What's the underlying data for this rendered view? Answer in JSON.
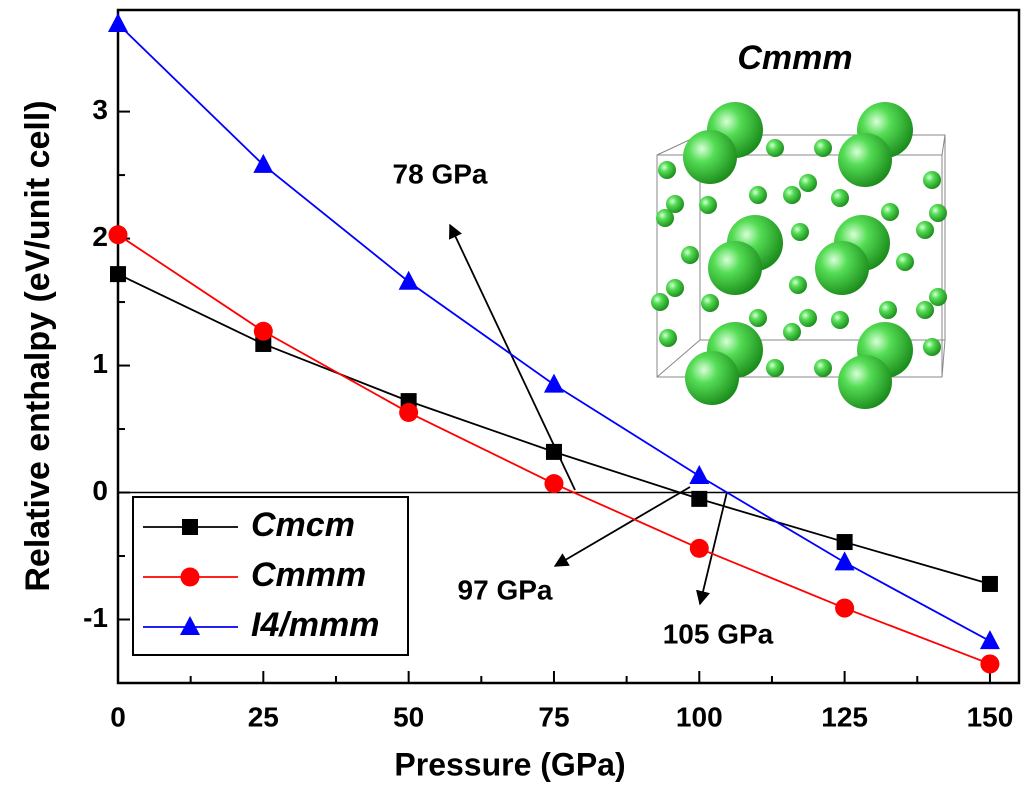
{
  "chart_data": {
    "type": "line",
    "x_label": "Pressure (GPa)",
    "y_label": "Relative enthalpy (eV/unit cell)",
    "x": [
      0,
      25,
      50,
      75,
      100,
      125,
      150
    ],
    "series": [
      {
        "name": "Cmcm",
        "color": "#000000",
        "marker": "square",
        "values": [
          1.72,
          1.17,
          0.72,
          0.32,
          -0.05,
          -0.39,
          -0.72
        ]
      },
      {
        "name": "Cmmm",
        "color": "#ff0000",
        "marker": "circle",
        "values": [
          2.03,
          1.27,
          0.63,
          0.07,
          -0.44,
          -0.91,
          -1.35
        ]
      },
      {
        "name": "I4/mmm",
        "color": "#0000ff",
        "marker": "triangle",
        "values": [
          3.69,
          2.58,
          1.66,
          0.85,
          0.13,
          -0.55,
          -1.17
        ]
      }
    ],
    "xlim": [
      0,
      155
    ],
    "ylim": [
      -1.5,
      3.8
    ],
    "xticks": [
      0,
      25,
      50,
      75,
      100,
      125,
      150
    ],
    "yticks": [
      -1,
      0,
      1,
      2,
      3
    ],
    "annotations": [
      "78 GPa",
      "97 GPa",
      "105 GPa"
    ],
    "inset_title": "Cmmm",
    "legend": "lower left"
  }
}
